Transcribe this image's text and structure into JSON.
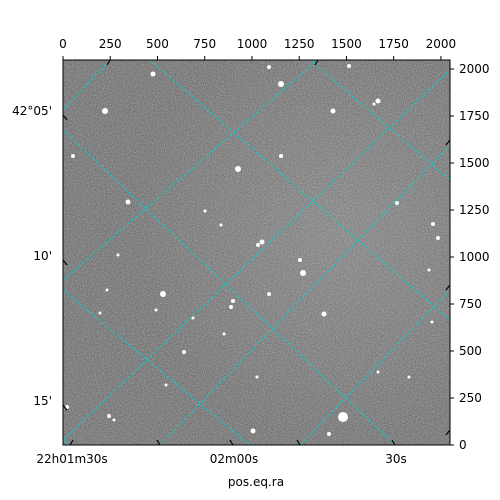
{
  "chart_data": {
    "type": "image",
    "xlabel": "pos.eq.ra",
    "pixel_axes": {
      "x_ticks": [
        0,
        250,
        500,
        750,
        1000,
        1250,
        1500,
        1750,
        2000
      ],
      "y_ticks": [
        0,
        250,
        500,
        750,
        1000,
        1250,
        1500,
        1750,
        2000
      ],
      "xlim": [
        0,
        2048
      ],
      "ylim": [
        0,
        2048
      ]
    },
    "world_axes": {
      "ra_labels": [
        "22h01m30s",
        "02m00s",
        "30s"
      ],
      "dec_labels": [
        "42°05'",
        "10'",
        "15'"
      ]
    },
    "grid": true,
    "grid_color": "#00d0d0",
    "image_colormap": "gray"
  }
}
